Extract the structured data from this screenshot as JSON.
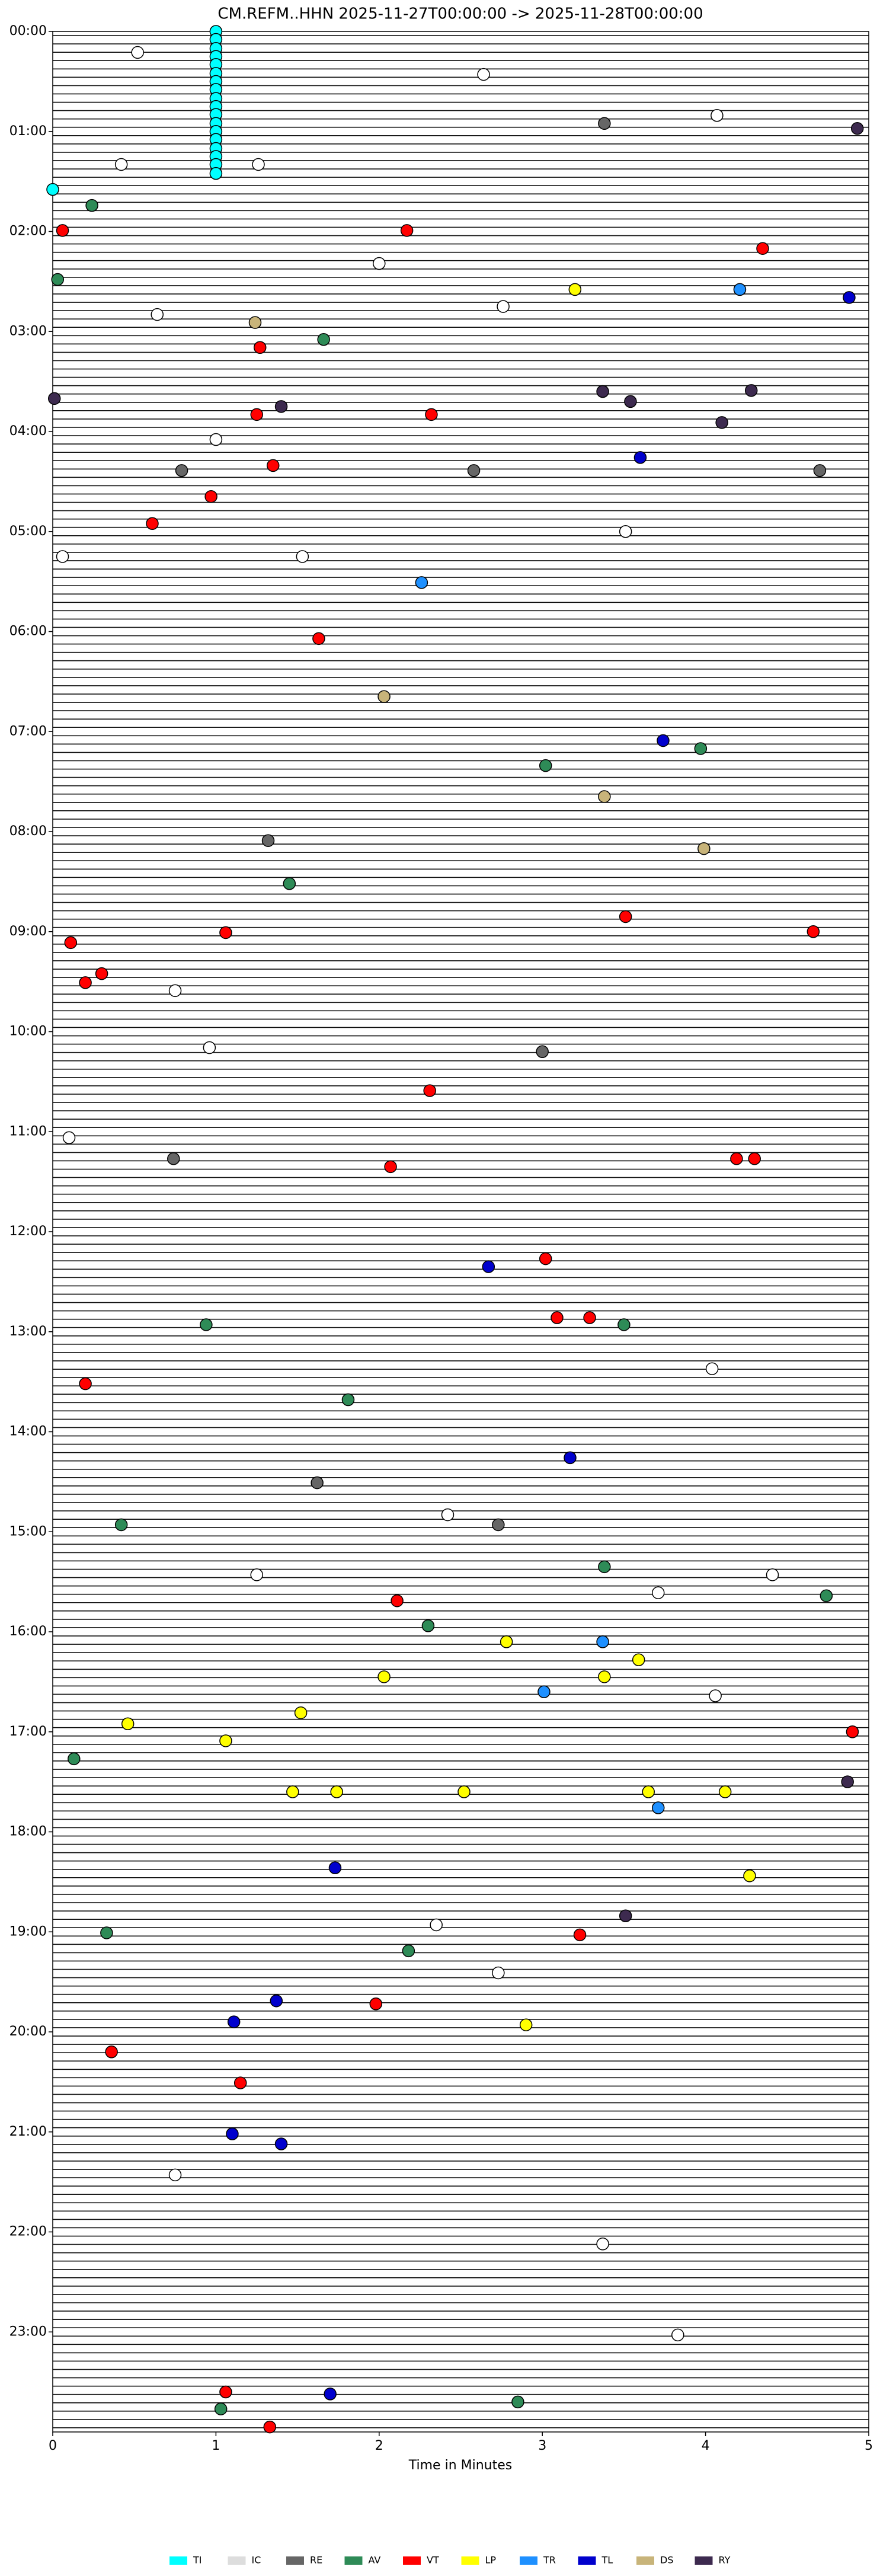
{
  "chart_data": {
    "type": "helicorder",
    "title": "CM.REFM..HHN  2025-11-27T00:00:00 -> 2025-11-28T00:00:00",
    "xlabel": "Time in Minutes",
    "xlim": [
      0,
      5
    ],
    "xticks": [
      0,
      1,
      2,
      3,
      4,
      5
    ],
    "ylim": [
      0,
      24
    ],
    "yticks": [
      {
        "value": 0,
        "label": "00:00"
      },
      {
        "value": 1,
        "label": "01:00"
      },
      {
        "value": 2,
        "label": "02:00"
      },
      {
        "value": 3,
        "label": "03:00"
      },
      {
        "value": 4,
        "label": "04:00"
      },
      {
        "value": 5,
        "label": "05:00"
      },
      {
        "value": 6,
        "label": "06:00"
      },
      {
        "value": 7,
        "label": "07:00"
      },
      {
        "value": 8,
        "label": "08:00"
      },
      {
        "value": 9,
        "label": "09:00"
      },
      {
        "value": 10,
        "label": "10:00"
      },
      {
        "value": 11,
        "label": "11:00"
      },
      {
        "value": 12,
        "label": "12:00"
      },
      {
        "value": 13,
        "label": "13:00"
      },
      {
        "value": 14,
        "label": "14:00"
      },
      {
        "value": 15,
        "label": "15:00"
      },
      {
        "value": 16,
        "label": "16:00"
      },
      {
        "value": 17,
        "label": "17:00"
      },
      {
        "value": 18,
        "label": "18:00"
      },
      {
        "value": 19,
        "label": "19:00"
      },
      {
        "value": 20,
        "label": "20:00"
      },
      {
        "value": 21,
        "label": "21:00"
      },
      {
        "value": 22,
        "label": "22:00"
      },
      {
        "value": 23,
        "label": "23:00"
      }
    ],
    "series": [
      {
        "name": "TI",
        "color": "#00ffff",
        "x": [
          1,
          1,
          1,
          1,
          1,
          1,
          1,
          1,
          1,
          1,
          1,
          1,
          1,
          1,
          1,
          1,
          1,
          1,
          0
        ],
        "y": [
          0,
          0.08,
          0.17,
          0.25,
          0.33,
          0.42,
          0.5,
          0.58,
          0.67,
          0.75,
          0.83,
          0.92,
          1,
          1.08,
          1.17,
          1.25,
          1.33,
          1.42,
          1.58
        ]
      },
      {
        "name": "IC",
        "color": "#ffffff",
        "x": [
          0.52,
          2.64,
          4.07,
          0.42,
          1.26,
          0.64,
          2.76,
          2,
          1,
          0.06,
          1.53,
          3.51,
          0.1,
          0.75,
          0.96,
          4.04,
          4.06,
          3.71,
          4.41,
          2.42,
          1.25,
          2.73,
          2.35,
          0.75,
          3.37,
          3.83
        ],
        "y": [
          0.21,
          0.43,
          0.84,
          1.33,
          1.33,
          2.83,
          2.75,
          2.32,
          4.08,
          5.25,
          5.25,
          5,
          11.06,
          9.59,
          10.16,
          13.37,
          16.64,
          15.61,
          15.43,
          14.83,
          15.43,
          19.41,
          18.93,
          21.43,
          22.12,
          23.03
        ]
      },
      {
        "name": "RE",
        "color": "#666666",
        "x": [
          3.38,
          0.74,
          1.62,
          2.73,
          3,
          0.79,
          2.58,
          4.7,
          1.32
        ],
        "y": [
          0.92,
          11.27,
          14.51,
          14.93,
          10.2,
          4.39,
          4.39,
          4.39,
          8.09
        ]
      },
      {
        "name": "AV",
        "color": "#2e8b57",
        "x": [
          0.03,
          0.24,
          1.66,
          1.45,
          3.02,
          3.97,
          0.94,
          3.5,
          1.81,
          0.42,
          3.38,
          2.3,
          4.74,
          0.13,
          0.33,
          2.18,
          1.03,
          2.85
        ],
        "y": [
          2.48,
          1.74,
          3.08,
          8.52,
          7.34,
          7.17,
          12.93,
          12.93,
          13.68,
          14.93,
          15.35,
          15.94,
          15.64,
          17.27,
          19.01,
          19.19,
          23.77,
          23.7
        ]
      },
      {
        "name": "VT",
        "color": "#ff0000",
        "x": [
          0.06,
          2.17,
          4.35,
          1.27,
          1.25,
          2.32,
          1.35,
          0.97,
          0.61,
          1.63,
          1.06,
          0.11,
          0.3,
          0.2,
          3.51,
          4.66,
          2.31,
          2.07,
          4.19,
          4.3,
          3.02,
          3.09,
          3.29,
          0.2,
          2.11,
          4.9,
          3.23,
          1.98,
          0.36,
          1.15,
          1.06,
          1.33
        ],
        "y": [
          1.99,
          1.99,
          2.17,
          3.16,
          3.83,
          3.83,
          4.34,
          4.65,
          4.92,
          6.07,
          9.01,
          9.11,
          9.42,
          9.51,
          8.85,
          9,
          10.59,
          11.35,
          11.27,
          11.27,
          12.27,
          12.86,
          12.86,
          13.52,
          15.69,
          17,
          19.03,
          19.72,
          20.2,
          20.51,
          23.6,
          23.95
        ]
      },
      {
        "name": "LP",
        "color": "#ffff00",
        "x": [
          3.2,
          2.78,
          2.03,
          3.59,
          3.38,
          1.52,
          0.46,
          1.06,
          1.47,
          1.74,
          2.52,
          3.65,
          4.12,
          4.27,
          2.9
        ],
        "y": [
          2.58,
          16.1,
          16.45,
          16.28,
          16.45,
          16.81,
          16.92,
          17.09,
          17.6,
          17.6,
          17.6,
          17.6,
          17.6,
          18.44,
          19.93
        ]
      },
      {
        "name": "TR",
        "color": "#1e90ff",
        "x": [
          4.21,
          2.26,
          3.01,
          3.37,
          3.71
        ],
        "y": [
          2.58,
          5.51,
          16.6,
          16.1,
          17.76
        ]
      },
      {
        "name": "TL",
        "color": "#0000cd",
        "x": [
          3.6,
          3.74,
          3.17,
          2.67,
          1.11,
          1.37,
          1.1,
          1.4,
          1.7,
          4.88,
          1.73
        ],
        "y": [
          4.26,
          7.09,
          14.26,
          12.35,
          19.9,
          19.69,
          21.02,
          21.12,
          23.62,
          2.66,
          18.36
        ]
      },
      {
        "name": "DS",
        "color": "#c8b47a",
        "x": [
          1.24,
          3.38,
          3.99,
          2.03
        ],
        "y": [
          2.91,
          7.65,
          8.17,
          6.65
        ]
      },
      {
        "name": "RY",
        "color": "#3d2a4f",
        "x": [
          3.37,
          3.54,
          4.28,
          1.4,
          4.1,
          0.01,
          4.93,
          4.87,
          3.51
        ],
        "y": [
          3.6,
          3.7,
          3.59,
          3.75,
          3.91,
          3.67,
          0.97,
          17.5,
          18.84
        ]
      }
    ]
  }
}
